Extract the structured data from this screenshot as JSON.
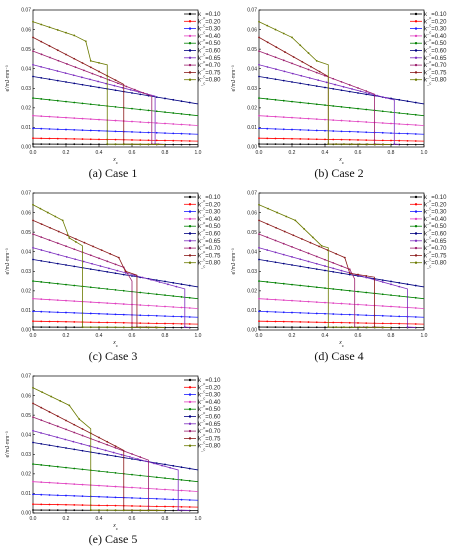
{
  "figure": {
    "panels": [
      {
        "caption": "(a) Case 1"
      },
      {
        "caption": "(b) Case 2"
      },
      {
        "caption": "(c) Case 3"
      },
      {
        "caption": "(d) Case 4"
      },
      {
        "caption": "(e) Case 5"
      }
    ]
  },
  "chart_data": [
    {
      "type": "line",
      "title": "",
      "caption": "(a) Case 1",
      "xlabel": "x_c",
      "ylabel": "e'/mJ·mm⁻³",
      "xlim": [
        0,
        1.0
      ],
      "ylim": [
        0,
        0.07
      ],
      "xticks": [
        "0.0",
        "0.2",
        "0.4",
        "0.6",
        "0.8",
        "1.0"
      ],
      "yticks": [
        "0.00",
        "0.01",
        "0.02",
        "0.03",
        "0.04",
        "0.05",
        "0.06",
        "0.07"
      ],
      "grid": false,
      "legend_position": "right",
      "series": [
        {
          "name": "k_c=0.10",
          "color": "#000000",
          "x": [
            0,
            1.0
          ],
          "y": [
            0.0015,
            0.0012
          ]
        },
        {
          "name": "k_c=0.20",
          "color": "#ff0000",
          "x": [
            0,
            1.0
          ],
          "y": [
            0.0045,
            0.003
          ]
        },
        {
          "name": "k_c=0.30",
          "color": "#1a1aff",
          "x": [
            0,
            1.0
          ],
          "y": [
            0.0095,
            0.0065
          ]
        },
        {
          "name": "k_c=0.40",
          "color": "#e040c0",
          "x": [
            0,
            1.0
          ],
          "y": [
            0.016,
            0.011
          ]
        },
        {
          "name": "k_c=0.50",
          "color": "#008000",
          "x": [
            0,
            1.0
          ],
          "y": [
            0.025,
            0.016
          ]
        },
        {
          "name": "k_c=0.60",
          "color": "#000080",
          "x": [
            0,
            1.0
          ],
          "y": [
            0.036,
            0.022
          ]
        },
        {
          "name": "k_c=0.65",
          "color": "#7b2cbf",
          "x": [
            0,
            0.74,
            0.74,
            0.8
          ],
          "y": [
            0.042,
            0.026,
            0.0015,
            0.0013
          ]
        },
        {
          "name": "k_c=0.70",
          "color": "#9c1f6e",
          "x": [
            0,
            0.72,
            0.72,
            0.8
          ],
          "y": [
            0.049,
            0.026,
            0.0015,
            0.0013
          ]
        },
        {
          "name": "k_c=0.75",
          "color": "#8b1a1a",
          "x": [
            0,
            0.55,
            0.55,
            0.8
          ],
          "y": [
            0.056,
            0.032,
            0.0015,
            0.0013
          ]
        },
        {
          "name": "k_c=0.80",
          "color": "#6b7a00",
          "x": [
            0,
            0.25,
            0.32,
            0.35,
            0.45,
            0.45,
            0.8
          ],
          "y": [
            0.064,
            0.057,
            0.054,
            0.044,
            0.042,
            0.0015,
            0.0013
          ]
        }
      ]
    },
    {
      "type": "line",
      "title": "",
      "caption": "(b) Case 2",
      "xlabel": "x_c",
      "ylabel": "e'/mJ·mm⁻³",
      "xlim": [
        0,
        1.0
      ],
      "ylim": [
        0,
        0.07
      ],
      "xticks": [
        "0.0",
        "0.2",
        "0.4",
        "0.6",
        "0.8",
        "1.0"
      ],
      "yticks": [
        "0.00",
        "0.01",
        "0.02",
        "0.03",
        "0.04",
        "0.05",
        "0.06",
        "0.07"
      ],
      "grid": false,
      "legend_position": "right",
      "series": [
        {
          "name": "k_c=0.10",
          "color": "#000000",
          "x": [
            0,
            1.0
          ],
          "y": [
            0.0015,
            0.0012
          ]
        },
        {
          "name": "k_c=0.20",
          "color": "#ff0000",
          "x": [
            0,
            1.0
          ],
          "y": [
            0.0045,
            0.003
          ]
        },
        {
          "name": "k_c=0.30",
          "color": "#1a1aff",
          "x": [
            0,
            1.0
          ],
          "y": [
            0.0095,
            0.0065
          ]
        },
        {
          "name": "k_c=0.40",
          "color": "#e040c0",
          "x": [
            0,
            1.0
          ],
          "y": [
            0.016,
            0.011
          ]
        },
        {
          "name": "k_c=0.50",
          "color": "#008000",
          "x": [
            0,
            1.0
          ],
          "y": [
            0.025,
            0.016
          ]
        },
        {
          "name": "k_c=0.60",
          "color": "#000080",
          "x": [
            0,
            1.0
          ],
          "y": [
            0.036,
            0.022
          ]
        },
        {
          "name": "k_c=0.65",
          "color": "#7b2cbf",
          "x": [
            0,
            0.82,
            0.82,
            0.85
          ],
          "y": [
            0.042,
            0.024,
            0.0015,
            0.0013
          ]
        },
        {
          "name": "k_c=0.70",
          "color": "#9c1f6e",
          "x": [
            0,
            0.7,
            0.7,
            0.8
          ],
          "y": [
            0.049,
            0.027,
            0.0015,
            0.0013
          ]
        },
        {
          "name": "k_c=0.75",
          "color": "#8b1a1a",
          "x": [
            0,
            0.42,
            0.42,
            0.8
          ],
          "y": [
            0.056,
            0.036,
            0.0015,
            0.0013
          ]
        },
        {
          "name": "k_c=0.80",
          "color": "#6b7a00",
          "x": [
            0,
            0.2,
            0.35,
            0.42,
            0.42,
            0.8
          ],
          "y": [
            0.064,
            0.056,
            0.044,
            0.042,
            0.0015,
            0.0013
          ]
        }
      ]
    },
    {
      "type": "line",
      "title": "",
      "caption": "(c) Case 3",
      "xlabel": "x_c",
      "ylabel": "e'/mJ·mm⁻³",
      "xlim": [
        0,
        1.0
      ],
      "ylim": [
        0,
        0.07
      ],
      "xticks": [
        "0.0",
        "0.2",
        "0.4",
        "0.6",
        "0.8",
        "1.0"
      ],
      "yticks": [
        "0.00",
        "0.01",
        "0.02",
        "0.03",
        "0.04",
        "0.05",
        "0.06",
        "0.07"
      ],
      "grid": false,
      "legend_position": "right",
      "series": [
        {
          "name": "k_c=0.10",
          "color": "#000000",
          "x": [
            0,
            1.0
          ],
          "y": [
            0.0015,
            0.0012
          ]
        },
        {
          "name": "k_c=0.20",
          "color": "#ff0000",
          "x": [
            0,
            1.0
          ],
          "y": [
            0.0045,
            0.003
          ]
        },
        {
          "name": "k_c=0.30",
          "color": "#1a1aff",
          "x": [
            0,
            1.0
          ],
          "y": [
            0.0095,
            0.0065
          ]
        },
        {
          "name": "k_c=0.40",
          "color": "#e040c0",
          "x": [
            0,
            1.0
          ],
          "y": [
            0.016,
            0.011
          ]
        },
        {
          "name": "k_c=0.50",
          "color": "#008000",
          "x": [
            0,
            1.0
          ],
          "y": [
            0.025,
            0.016
          ]
        },
        {
          "name": "k_c=0.60",
          "color": "#000080",
          "x": [
            0,
            1.0
          ],
          "y": [
            0.036,
            0.022
          ]
        },
        {
          "name": "k_c=0.65",
          "color": "#7b2cbf",
          "x": [
            0,
            0.92,
            0.92,
            0.95
          ],
          "y": [
            0.042,
            0.021,
            0.0015,
            0.0013
          ]
        },
        {
          "name": "k_c=0.70",
          "color": "#9c1f6e",
          "x": [
            0,
            0.55,
            0.6,
            0.6,
            0.8
          ],
          "y": [
            0.049,
            0.032,
            0.025,
            0.0015,
            0.0013
          ]
        },
        {
          "name": "k_c=0.75",
          "color": "#8b1a1a",
          "x": [
            0,
            0.52,
            0.56,
            0.63,
            0.63,
            0.8
          ],
          "y": [
            0.056,
            0.037,
            0.03,
            0.028,
            0.0015,
            0.0013
          ]
        },
        {
          "name": "k_c=0.80",
          "color": "#6b7a00",
          "x": [
            0,
            0.18,
            0.22,
            0.3,
            0.3,
            0.8
          ],
          "y": [
            0.064,
            0.056,
            0.047,
            0.043,
            0.0015,
            0.0013
          ]
        }
      ]
    },
    {
      "type": "line",
      "title": "",
      "caption": "(d) Case 4",
      "xlabel": "x_c",
      "ylabel": "e'/mJ·mm⁻³",
      "xlim": [
        0,
        1.0
      ],
      "ylim": [
        0,
        0.07
      ],
      "xticks": [
        "0.0",
        "0.2",
        "0.4",
        "0.6",
        "0.8",
        "1.0"
      ],
      "yticks": [
        "0.00",
        "0.01",
        "0.02",
        "0.03",
        "0.04",
        "0.05",
        "0.06",
        "0.07"
      ],
      "grid": false,
      "legend_position": "right",
      "series": [
        {
          "name": "k_c=0.10",
          "color": "#000000",
          "x": [
            0,
            1.0
          ],
          "y": [
            0.0015,
            0.0012
          ]
        },
        {
          "name": "k_c=0.20",
          "color": "#ff0000",
          "x": [
            0,
            1.0
          ],
          "y": [
            0.0045,
            0.003
          ]
        },
        {
          "name": "k_c=0.30",
          "color": "#1a1aff",
          "x": [
            0,
            1.0
          ],
          "y": [
            0.0095,
            0.0065
          ]
        },
        {
          "name": "k_c=0.40",
          "color": "#e040c0",
          "x": [
            0,
            1.0
          ],
          "y": [
            0.016,
            0.011
          ]
        },
        {
          "name": "k_c=0.50",
          "color": "#008000",
          "x": [
            0,
            1.0
          ],
          "y": [
            0.025,
            0.016
          ]
        },
        {
          "name": "k_c=0.60",
          "color": "#000080",
          "x": [
            0,
            1.0
          ],
          "y": [
            0.036,
            0.022
          ]
        },
        {
          "name": "k_c=0.65",
          "color": "#7b2cbf",
          "x": [
            0,
            0.9,
            0.9,
            0.95
          ],
          "y": [
            0.042,
            0.021,
            0.0015,
            0.0013
          ]
        },
        {
          "name": "k_c=0.70",
          "color": "#9c1f6e",
          "x": [
            0,
            0.55,
            0.58,
            0.58,
            0.8
          ],
          "y": [
            0.049,
            0.031,
            0.026,
            0.0015,
            0.0013
          ]
        },
        {
          "name": "k_c=0.75",
          "color": "#8b1a1a",
          "x": [
            0,
            0.52,
            0.55,
            0.7,
            0.7,
            0.8
          ],
          "y": [
            0.056,
            0.037,
            0.029,
            0.027,
            0.0015,
            0.0013
          ]
        },
        {
          "name": "k_c=0.80",
          "color": "#6b7a00",
          "x": [
            0,
            0.22,
            0.38,
            0.42,
            0.42,
            0.8
          ],
          "y": [
            0.064,
            0.056,
            0.043,
            0.042,
            0.0015,
            0.0013
          ]
        }
      ]
    },
    {
      "type": "line",
      "title": "",
      "caption": "(e) Case 5",
      "xlabel": "x_c",
      "ylabel": "e'/mJ·mm⁻³",
      "xlim": [
        0,
        1.0
      ],
      "ylim": [
        0,
        0.07
      ],
      "xticks": [
        "0.0",
        "0.2",
        "0.4",
        "0.6",
        "0.8",
        "1.0"
      ],
      "yticks": [
        "0.00",
        "0.01",
        "0.02",
        "0.03",
        "0.04",
        "0.05",
        "0.06",
        "0.07"
      ],
      "grid": false,
      "legend_position": "right",
      "series": [
        {
          "name": "k_c=0.10",
          "color": "#000000",
          "x": [
            0,
            1.0
          ],
          "y": [
            0.0015,
            0.0012
          ]
        },
        {
          "name": "k_c=0.20",
          "color": "#ff0000",
          "x": [
            0,
            1.0
          ],
          "y": [
            0.0045,
            0.003
          ]
        },
        {
          "name": "k_c=0.30",
          "color": "#1a1aff",
          "x": [
            0,
            1.0
          ],
          "y": [
            0.0095,
            0.0065
          ]
        },
        {
          "name": "k_c=0.40",
          "color": "#e040c0",
          "x": [
            0,
            1.0
          ],
          "y": [
            0.016,
            0.011
          ]
        },
        {
          "name": "k_c=0.50",
          "color": "#008000",
          "x": [
            0,
            1.0
          ],
          "y": [
            0.025,
            0.016
          ]
        },
        {
          "name": "k_c=0.60",
          "color": "#000080",
          "x": [
            0,
            1.0
          ],
          "y": [
            0.036,
            0.022
          ]
        },
        {
          "name": "k_c=0.65",
          "color": "#7b2cbf",
          "x": [
            0,
            0.88,
            0.88,
            0.95
          ],
          "y": [
            0.042,
            0.022,
            0.0015,
            0.0013
          ]
        },
        {
          "name": "k_c=0.70",
          "color": "#9c1f6e",
          "x": [
            0,
            0.7,
            0.7,
            0.8
          ],
          "y": [
            0.049,
            0.027,
            0.0015,
            0.0013
          ]
        },
        {
          "name": "k_c=0.75",
          "color": "#8b1a1a",
          "x": [
            0,
            0.55,
            0.55,
            0.8
          ],
          "y": [
            0.056,
            0.032,
            0.0015,
            0.0013
          ]
        },
        {
          "name": "k_c=0.80",
          "color": "#6b7a00",
          "x": [
            0,
            0.22,
            0.28,
            0.35,
            0.35,
            0.8
          ],
          "y": [
            0.064,
            0.055,
            0.048,
            0.043,
            0.0015,
            0.0013
          ]
        }
      ]
    }
  ]
}
